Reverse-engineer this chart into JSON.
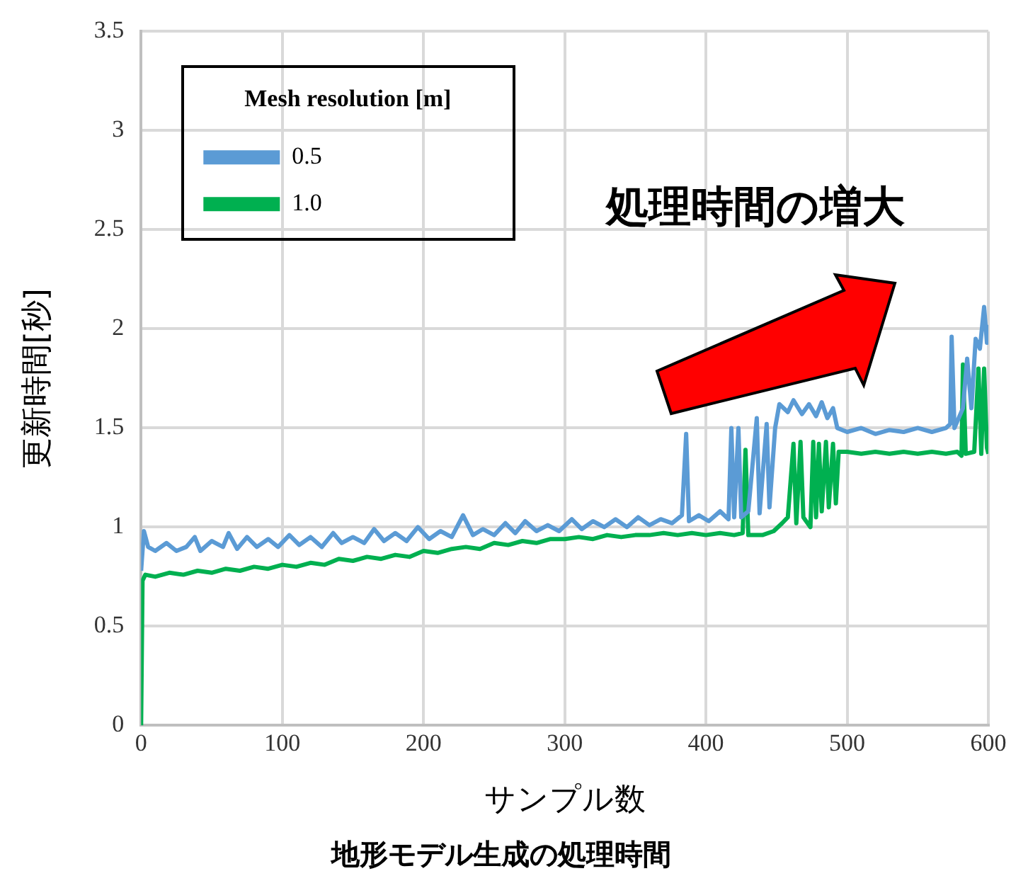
{
  "chart_data": {
    "type": "line",
    "title": "地形モデル生成の処理時間",
    "xlabel": "サンプル数",
    "ylabel": "更新時間[秒]",
    "legend_title": "Mesh resolution [m]",
    "legend": "top left",
    "grid": true,
    "marker": "none",
    "line_style": "solid",
    "xlim": [
      0,
      600
    ],
    "xticks": [
      0,
      100,
      200,
      300,
      400,
      500,
      600
    ],
    "ylim": [
      0,
      3.5
    ],
    "yticks": [
      0,
      0.5,
      1,
      1.5,
      2,
      2.5,
      3,
      3.5
    ],
    "annotations": [
      "処理時間の増大"
    ],
    "series": [
      {
        "name": "0.5",
        "color": "#5b9bd5",
        "x": [
          0,
          2,
          5,
          10,
          18,
          25,
          32,
          38,
          42,
          50,
          58,
          62,
          68,
          75,
          82,
          90,
          97,
          105,
          112,
          120,
          128,
          136,
          142,
          150,
          158,
          165,
          172,
          180,
          188,
          196,
          204,
          212,
          220,
          228,
          235,
          242,
          250,
          258,
          265,
          272,
          280,
          288,
          296,
          305,
          312,
          320,
          328,
          336,
          344,
          352,
          360,
          368,
          376,
          383,
          386,
          388,
          395,
          402,
          410,
          416,
          418,
          420,
          423,
          425,
          430,
          436,
          438,
          443,
          445,
          449,
          452,
          458,
          462,
          468,
          473,
          478,
          482,
          486,
          490,
          493,
          500,
          510,
          520,
          530,
          540,
          550,
          560,
          570,
          573,
          574,
          576,
          582,
          585,
          588,
          591,
          594,
          597,
          599,
          600
        ],
        "values": [
          0.78,
          0.98,
          0.9,
          0.88,
          0.92,
          0.88,
          0.9,
          0.95,
          0.88,
          0.93,
          0.9,
          0.97,
          0.89,
          0.95,
          0.9,
          0.94,
          0.9,
          0.96,
          0.91,
          0.95,
          0.9,
          0.97,
          0.92,
          0.95,
          0.92,
          0.99,
          0.93,
          0.97,
          0.93,
          1.0,
          0.94,
          0.98,
          0.95,
          1.06,
          0.96,
          0.99,
          0.96,
          1.02,
          0.97,
          1.03,
          0.98,
          1.01,
          0.98,
          1.04,
          0.99,
          1.03,
          1.0,
          1.04,
          1.0,
          1.05,
          1.01,
          1.04,
          1.02,
          1.06,
          1.47,
          1.03,
          1.06,
          1.03,
          1.08,
          1.04,
          1.5,
          1.05,
          1.5,
          1.05,
          1.08,
          1.55,
          1.07,
          1.52,
          1.1,
          1.5,
          1.62,
          1.58,
          1.64,
          1.57,
          1.62,
          1.56,
          1.63,
          1.55,
          1.6,
          1.5,
          1.48,
          1.5,
          1.47,
          1.49,
          1.48,
          1.5,
          1.48,
          1.5,
          1.52,
          1.96,
          1.5,
          1.6,
          1.85,
          1.6,
          1.95,
          1.9,
          2.11,
          1.93,
          2.02
        ]
      },
      {
        "name": "1.0",
        "color": "#00b050",
        "x": [
          0,
          1,
          3,
          10,
          20,
          30,
          40,
          50,
          60,
          70,
          80,
          90,
          100,
          110,
          120,
          130,
          140,
          150,
          160,
          170,
          180,
          190,
          200,
          210,
          220,
          230,
          240,
          250,
          260,
          270,
          280,
          290,
          300,
          310,
          320,
          330,
          340,
          350,
          360,
          370,
          380,
          390,
          400,
          410,
          420,
          426,
          428,
          430,
          440,
          448,
          454,
          458,
          462,
          464,
          467,
          469,
          474,
          476,
          478,
          480,
          482,
          485,
          487,
          490,
          492,
          494,
          500,
          510,
          520,
          530,
          540,
          550,
          560,
          570,
          578,
          581,
          582,
          584,
          590,
          593,
          595,
          597,
          599,
          600
        ],
        "values": [
          0,
          0.73,
          0.76,
          0.75,
          0.77,
          0.76,
          0.78,
          0.77,
          0.79,
          0.78,
          0.8,
          0.79,
          0.81,
          0.8,
          0.82,
          0.81,
          0.84,
          0.83,
          0.85,
          0.84,
          0.86,
          0.85,
          0.88,
          0.87,
          0.89,
          0.9,
          0.89,
          0.92,
          0.91,
          0.93,
          0.92,
          0.94,
          0.94,
          0.95,
          0.94,
          0.96,
          0.95,
          0.96,
          0.96,
          0.97,
          0.96,
          0.97,
          0.96,
          0.97,
          0.96,
          0.97,
          1.39,
          0.96,
          0.96,
          0.98,
          1.02,
          1.05,
          1.42,
          1.02,
          1.43,
          1.05,
          1.0,
          1.43,
          1.05,
          1.42,
          1.08,
          1.43,
          1.1,
          1.42,
          1.12,
          1.38,
          1.38,
          1.37,
          1.38,
          1.37,
          1.38,
          1.37,
          1.38,
          1.37,
          1.38,
          1.36,
          1.82,
          1.37,
          1.38,
          1.8,
          1.37,
          1.8,
          1.4,
          1.37
        ]
      }
    ]
  }
}
